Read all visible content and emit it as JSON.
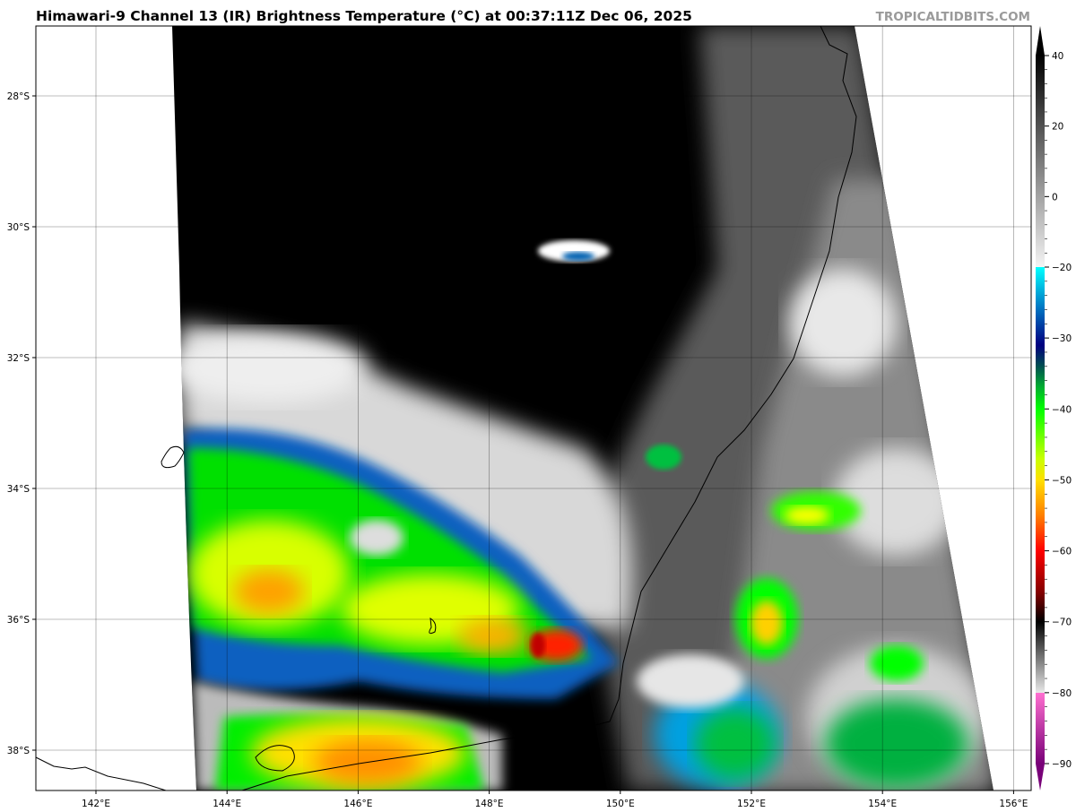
{
  "header": {
    "title": "Himawari-9 Channel 13 (IR) Brightness Temperature (°C) at 00:37:11Z Dec 06, 2025",
    "watermark": "TROPICALTIDBITS.COM"
  },
  "map": {
    "lon_labels": [
      "142°E",
      "144°E",
      "146°E",
      "148°E",
      "150°E",
      "152°E",
      "154°E",
      "156°E"
    ],
    "lon_values": [
      142,
      144,
      146,
      148,
      150,
      152,
      154,
      156
    ],
    "lat_labels": [
      "28°S",
      "30°S",
      "32°S",
      "34°S",
      "36°S",
      "38°S"
    ],
    "lat_values": [
      -28,
      -30,
      -32,
      -34,
      -36,
      -38
    ],
    "gridlines": true
  },
  "colorbar": {
    "unit": "°C",
    "range": [
      -93,
      48
    ],
    "tick_labels": [
      "40",
      "20",
      "0",
      "−20",
      "−30",
      "−40",
      "−50",
      "−60",
      "−70",
      "−80",
      "−90"
    ],
    "tick_values": [
      40,
      20,
      0,
      -20,
      -30,
      -40,
      -50,
      -60,
      -70,
      -80,
      -90
    ],
    "stops": [
      {
        "value": 48,
        "color": "#000000"
      },
      {
        "value": -20,
        "color": "#f4f4f4"
      },
      {
        "value": -20.01,
        "color": "#00ffff"
      },
      {
        "value": -26,
        "color": "#0070c0"
      },
      {
        "value": -31,
        "color": "#000080"
      },
      {
        "value": -34,
        "color": "#005050"
      },
      {
        "value": -37,
        "color": "#00b030"
      },
      {
        "value": -40,
        "color": "#00ff00"
      },
      {
        "value": -47,
        "color": "#c8ff00"
      },
      {
        "value": -50,
        "color": "#ffe000"
      },
      {
        "value": -55,
        "color": "#ff8000"
      },
      {
        "value": -60,
        "color": "#ff0000"
      },
      {
        "value": -66,
        "color": "#800000"
      },
      {
        "value": -70,
        "color": "#000000"
      },
      {
        "value": -80,
        "color": "#e8e8e8"
      },
      {
        "value": -80.01,
        "color": "#ff70d0"
      },
      {
        "value": -93,
        "color": "#780078"
      }
    ]
  }
}
